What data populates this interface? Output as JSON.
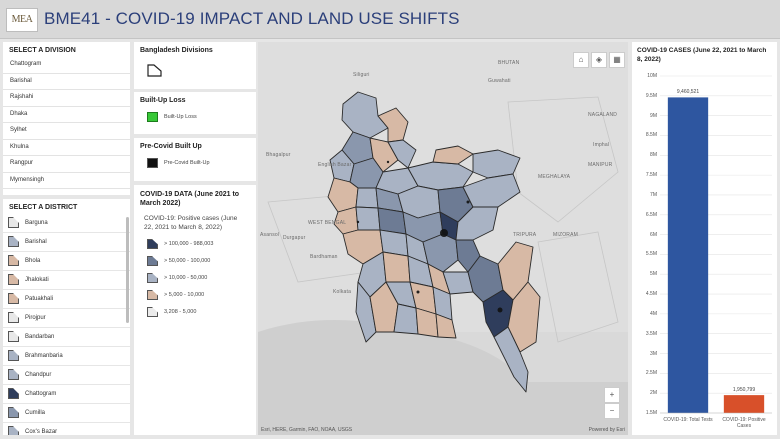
{
  "header": {
    "logo_text": "MEA",
    "title": "BME41 - COVID-19 IMPACT AND LAND USE SHIFTS"
  },
  "division_list": {
    "title": "SELECT A DIVISION",
    "items": [
      "Chattogram",
      "Barishal",
      "Rajshahi",
      "Dhaka",
      "Sylhet",
      "Khulna",
      "Rangpur",
      "Mymensingh"
    ]
  },
  "district_list": {
    "title": "SELECT A DISTRICT",
    "items": [
      {
        "label": "Barguna",
        "color": "#e8e8e8"
      },
      {
        "label": "Barishal",
        "color": "#a9b3c4"
      },
      {
        "label": "Bhola",
        "color": "#d7b9a5"
      },
      {
        "label": "Jhalokati",
        "color": "#d7b9a5"
      },
      {
        "label": "Patuakhali",
        "color": "#d7b9a5"
      },
      {
        "label": "Pirojpur",
        "color": "#e8e8e8"
      },
      {
        "label": "Bandarban",
        "color": "#e8e8e8"
      },
      {
        "label": "Brahmanbaria",
        "color": "#a9b3c4"
      },
      {
        "label": "Chandpur",
        "color": "#a9b3c4"
      },
      {
        "label": "Chattogram",
        "color": "#2f3d5c"
      },
      {
        "label": "Cumilla",
        "color": "#8a97ad"
      },
      {
        "label": "Cox's Bazar",
        "color": "#a9b3c4"
      }
    ]
  },
  "legends": {
    "divisions": {
      "title": "Bangladesh Divisions"
    },
    "builtup_loss": {
      "title": "Built-Up Loss",
      "label": "Built-Up Loss",
      "color": "#37c837"
    },
    "precovid": {
      "title": "Pre-Covid Built Up",
      "label": "Pre-Covid Built-Up",
      "color": "#111111"
    },
    "covid": {
      "title": "COVID-19 DATA (June 2021 to March 2022)",
      "subtitle": "COVID-19: Positive cases (June 22, 2021 to March 8, 2022)",
      "classes": [
        {
          "label": "> 100,000 - 988,003",
          "color": "#2f3d5c"
        },
        {
          "label": "> 50,000 - 100,000",
          "color": "#6d7b94"
        },
        {
          "label": "> 10,000 - 50,000",
          "color": "#a9b3c4"
        },
        {
          "label": "> 5,000 - 10,000",
          "color": "#d7b9a5"
        },
        {
          "label": "3,208 - 5,000",
          "color": "#ebebeb"
        }
      ]
    }
  },
  "map": {
    "place_labels": [
      "Siliguri",
      "BHUTAN",
      "Guwahati",
      "NAGALAND",
      "MANIPUR",
      "MEGHALAYA",
      "Bhagalpur",
      "English Bazar",
      "WEST BENGAL",
      "Asansol",
      "Durgapur",
      "Bardhaman",
      "Kolkata",
      "MIZORAM",
      "TRIPURA",
      "Imphal"
    ],
    "attribution": "Esri, HERE, Garmin, FAO, NOAA, USGS",
    "powered_by": "Powered by Esri",
    "zoom_in": "+",
    "zoom_out": "−"
  },
  "chart_data": {
    "type": "bar",
    "title": "COVID-19 CASES (June 22, 2021 to March 8, 2022)",
    "categories": [
      "COVID-19: Total Tests",
      "COVID-19: Positive Cases"
    ],
    "values": [
      9460521,
      1950799
    ],
    "value_labels": [
      "9,460,521",
      "1,950,799"
    ],
    "colors": [
      "#2e56a0",
      "#d8502a"
    ],
    "ylim": [
      1500000,
      10000000
    ],
    "yticks": [
      1500000,
      2000000,
      2500000,
      3000000,
      3500000,
      4000000,
      4500000,
      5000000,
      5500000,
      6000000,
      6500000,
      7000000,
      7500000,
      8000000,
      8500000,
      9000000,
      9500000,
      10000000
    ],
    "ytick_labels": [
      "1.5M",
      "2M",
      "2.5M",
      "3M",
      "3.5M",
      "4M",
      "4.5M",
      "5M",
      "5.5M",
      "6M",
      "6.5M",
      "7M",
      "7.5M",
      "8M",
      "8.5M",
      "9M",
      "9.5M",
      "10M"
    ],
    "grid": true
  }
}
